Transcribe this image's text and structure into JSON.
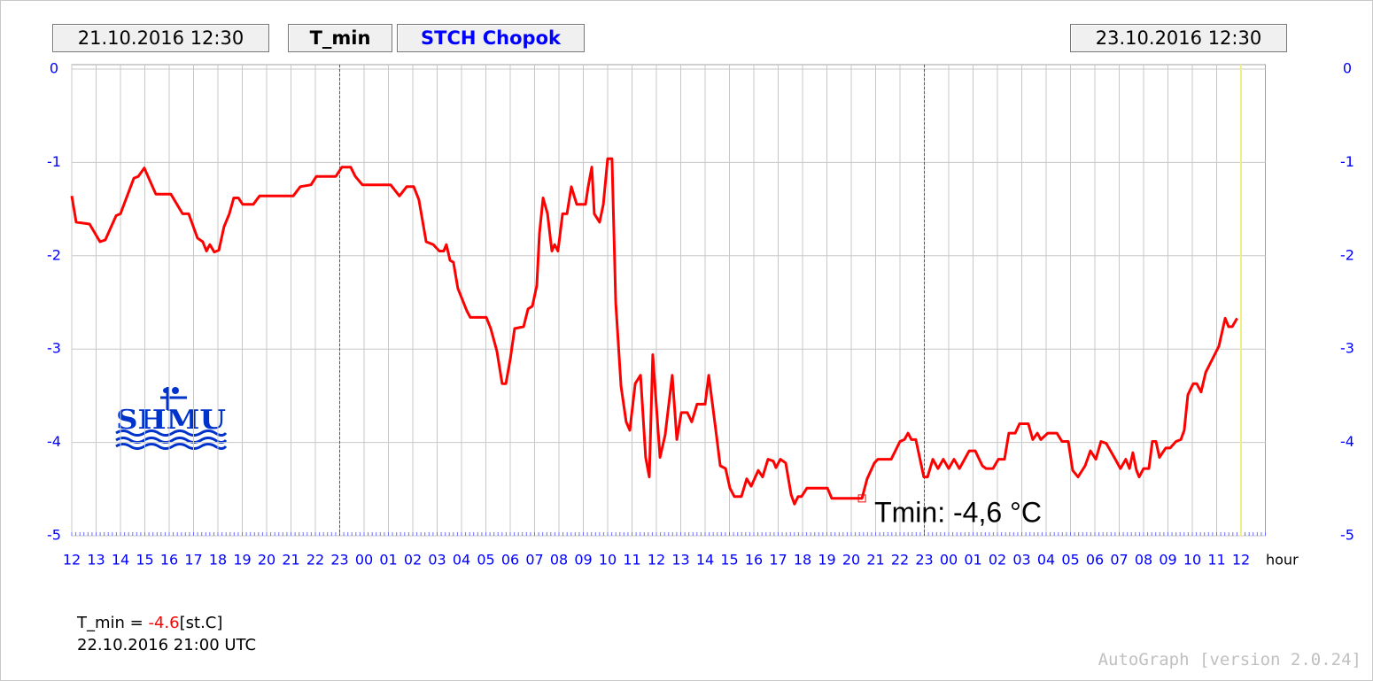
{
  "chart_data": {
    "type": "line",
    "start_time": "21.10.2016 12:30",
    "variable": "T_min",
    "station": "STCH Chopok",
    "end_time": "23.10.2016 12:30",
    "logo": "SHMU",
    "x_unit": "hour",
    "color": "#ff0000",
    "grid": true,
    "xlim": [
      0,
      49
    ],
    "ylim": [
      -5,
      0
    ],
    "yticks": [
      0,
      -1,
      -2,
      -3,
      -4,
      -5
    ],
    "xticks": [
      {
        "value": 0,
        "label": "12"
      },
      {
        "value": 1,
        "label": "13"
      },
      {
        "value": 2,
        "label": "14"
      },
      {
        "value": 3,
        "label": "15"
      },
      {
        "value": 4,
        "label": "16"
      },
      {
        "value": 5,
        "label": "17"
      },
      {
        "value": 6,
        "label": "18"
      },
      {
        "value": 7,
        "label": "19"
      },
      {
        "value": 8,
        "label": "20"
      },
      {
        "value": 9,
        "label": "21"
      },
      {
        "value": 10,
        "label": "22"
      },
      {
        "value": 11,
        "label": "23"
      },
      {
        "value": 12,
        "label": "00"
      },
      {
        "value": 13,
        "label": "01"
      },
      {
        "value": 14,
        "label": "02"
      },
      {
        "value": 15,
        "label": "03"
      },
      {
        "value": 16,
        "label": "04"
      },
      {
        "value": 17,
        "label": "05"
      },
      {
        "value": 18,
        "label": "06"
      },
      {
        "value": 19,
        "label": "07"
      },
      {
        "value": 20,
        "label": "08"
      },
      {
        "value": 21,
        "label": "09"
      },
      {
        "value": 22,
        "label": "10"
      },
      {
        "value": 23,
        "label": "11"
      },
      {
        "value": 24,
        "label": "12"
      },
      {
        "value": 25,
        "label": "13"
      },
      {
        "value": 26,
        "label": "14"
      },
      {
        "value": 27,
        "label": "15"
      },
      {
        "value": 28,
        "label": "16"
      },
      {
        "value": 29,
        "label": "17"
      },
      {
        "value": 30,
        "label": "18"
      },
      {
        "value": 31,
        "label": "19"
      },
      {
        "value": 32,
        "label": "20"
      },
      {
        "value": 33,
        "label": "21"
      },
      {
        "value": 34,
        "label": "22"
      },
      {
        "value": 35,
        "label": "23"
      },
      {
        "value": 36,
        "label": "00"
      },
      {
        "value": 37,
        "label": "01"
      },
      {
        "value": 38,
        "label": "02"
      },
      {
        "value": 39,
        "label": "03"
      },
      {
        "value": 40,
        "label": "04"
      },
      {
        "value": 41,
        "label": "05"
      },
      {
        "value": 42,
        "label": "06"
      },
      {
        "value": 43,
        "label": "07"
      },
      {
        "value": 44,
        "label": "08"
      },
      {
        "value": 45,
        "label": "09"
      },
      {
        "value": 46,
        "label": "10"
      },
      {
        "value": 47,
        "label": "11"
      },
      {
        "value": 48,
        "label": "12"
      }
    ],
    "day_lines": [
      11,
      35
    ],
    "now_line": 48,
    "x": [
      0,
      0.18,
      0.73,
      1.16,
      1.38,
      1.82,
      2.0,
      2.55,
      2.73,
      2.98,
      3.45,
      4.07,
      4.55,
      4.8,
      5.16,
      5.38,
      5.53,
      5.67,
      5.85,
      6.04,
      6.25,
      6.47,
      6.65,
      6.84,
      7.02,
      7.45,
      7.71,
      9.09,
      9.38,
      9.82,
      10.04,
      10.84,
      11.09,
      11.45,
      11.64,
      11.93,
      13.09,
      13.45,
      13.75,
      14.04,
      14.25,
      14.55,
      14.84,
      15.09,
      15.27,
      15.38,
      15.53,
      15.67,
      15.85,
      16.22,
      16.36,
      17.02,
      17.2,
      17.45,
      17.67,
      17.82,
      18.0,
      18.18,
      18.55,
      18.73,
      18.91,
      19.09,
      19.2,
      19.35,
      19.53,
      19.71,
      19.82,
      19.96,
      20.15,
      20.33,
      20.51,
      20.73,
      21.09,
      21.2,
      21.35,
      21.45,
      21.67,
      21.82,
      22.0,
      22.18,
      22.33,
      22.55,
      22.76,
      22.91,
      23.13,
      23.35,
      23.56,
      23.71,
      23.85,
      24.15,
      24.36,
      24.65,
      24.84,
      25.02,
      25.27,
      25.45,
      25.67,
      26.0,
      26.15,
      26.44,
      26.62,
      26.84,
      27.02,
      27.2,
      27.49,
      27.71,
      27.89,
      28.18,
      28.36,
      28.58,
      28.8,
      28.91,
      29.09,
      29.31,
      29.53,
      29.67,
      29.82,
      29.96,
      30.18,
      31.02,
      31.2,
      32.44,
      32.65,
      32.95,
      33.09,
      33.64,
      34.0,
      34.18,
      34.33,
      34.47,
      34.65,
      34.98,
      35.13,
      35.35,
      35.56,
      35.78,
      36.0,
      36.22,
      36.44,
      36.65,
      36.84,
      37.09,
      37.38,
      37.53,
      37.82,
      38.04,
      38.29,
      38.47,
      38.73,
      38.91,
      39.27,
      39.45,
      39.64,
      39.78,
      40.07,
      40.44,
      40.65,
      40.91,
      41.09,
      41.31,
      41.6,
      41.82,
      42.04,
      42.25,
      42.47,
      42.84,
      43.05,
      43.27,
      43.42,
      43.56,
      43.71,
      43.82,
      44.0,
      44.22,
      44.36,
      44.51,
      44.65,
      44.91,
      45.09,
      45.33,
      45.53,
      45.67,
      45.82,
      46.04,
      46.18,
      46.36,
      46.55,
      47.09,
      47.35,
      47.49,
      47.64,
      47.84
    ],
    "values": [
      -1.36,
      -1.64,
      -1.66,
      -1.85,
      -1.83,
      -1.57,
      -1.55,
      -1.17,
      -1.15,
      -1.06,
      -1.34,
      -1.34,
      -1.55,
      -1.55,
      -1.81,
      -1.85,
      -1.95,
      -1.88,
      -1.96,
      -1.94,
      -1.69,
      -1.55,
      -1.38,
      -1.38,
      -1.45,
      -1.45,
      -1.36,
      -1.36,
      -1.26,
      -1.24,
      -1.15,
      -1.15,
      -1.05,
      -1.05,
      -1.15,
      -1.24,
      -1.24,
      -1.36,
      -1.26,
      -1.26,
      -1.4,
      -1.85,
      -1.88,
      -1.95,
      -1.95,
      -1.88,
      -2.05,
      -2.07,
      -2.35,
      -2.59,
      -2.66,
      -2.66,
      -2.78,
      -3.02,
      -3.37,
      -3.37,
      -3.11,
      -2.78,
      -2.76,
      -2.57,
      -2.54,
      -2.32,
      -1.76,
      -1.38,
      -1.55,
      -1.95,
      -1.88,
      -1.95,
      -1.55,
      -1.55,
      -1.26,
      -1.45,
      -1.45,
      -1.26,
      -1.05,
      -1.55,
      -1.64,
      -1.45,
      -0.96,
      -0.96,
      -2.5,
      -3.4,
      -3.78,
      -3.87,
      -3.37,
      -3.28,
      -4.16,
      -4.37,
      -3.06,
      -4.16,
      -3.92,
      -3.28,
      -3.97,
      -3.68,
      -3.68,
      -3.78,
      -3.59,
      -3.59,
      -3.28,
      -3.87,
      -4.25,
      -4.28,
      -4.49,
      -4.58,
      -4.58,
      -4.39,
      -4.47,
      -4.3,
      -4.37,
      -4.18,
      -4.2,
      -4.27,
      -4.18,
      -4.22,
      -4.56,
      -4.66,
      -4.58,
      -4.58,
      -4.49,
      -4.49,
      -4.6,
      -4.6,
      -4.39,
      -4.22,
      -4.18,
      -4.18,
      -3.99,
      -3.97,
      -3.9,
      -3.97,
      -3.97,
      -4.37,
      -4.37,
      -4.18,
      -4.28,
      -4.18,
      -4.28,
      -4.18,
      -4.28,
      -4.18,
      -4.09,
      -4.09,
      -4.25,
      -4.28,
      -4.28,
      -4.18,
      -4.18,
      -3.9,
      -3.9,
      -3.8,
      -3.8,
      -3.97,
      -3.9,
      -3.97,
      -3.9,
      -3.9,
      -3.99,
      -3.99,
      -4.3,
      -4.37,
      -4.25,
      -4.09,
      -4.18,
      -3.99,
      -4.01,
      -4.18,
      -4.28,
      -4.18,
      -4.28,
      -4.11,
      -4.3,
      -4.37,
      -4.28,
      -4.28,
      -3.99,
      -3.99,
      -4.16,
      -4.06,
      -4.06,
      -3.99,
      -3.97,
      -3.87,
      -3.49,
      -3.37,
      -3.37,
      -3.46,
      -3.25,
      -2.97,
      -2.67,
      -2.76,
      -2.76,
      -2.67
    ],
    "annotation": {
      "text": "Tmin: -4,6 °C",
      "x": 32.44,
      "y": -4.6
    },
    "footer": {
      "label": "T_min =",
      "value": -4.6,
      "unit": "[st.C]",
      "time": "22.10.2016 21:00 UTC"
    },
    "version": "AutoGraph [version 2.0.24]"
  }
}
